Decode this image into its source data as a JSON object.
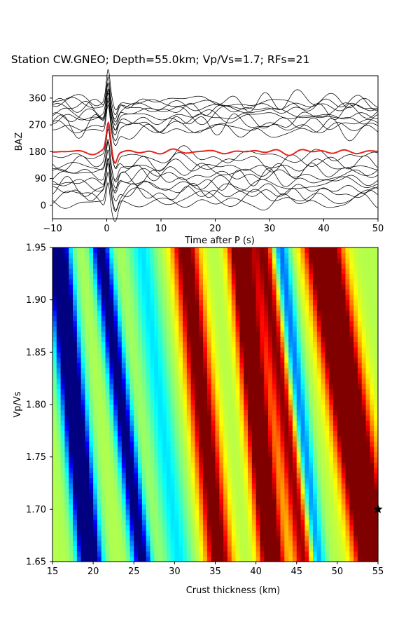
{
  "title": "Station CW.GNEO; Depth=55.0km; Vp/Vs=1.7; RFs=21",
  "chart_data": [
    {
      "type": "line",
      "xlabel": "Time after P (s)",
      "ylabel": "BAZ",
      "xlim": [
        -10,
        50
      ],
      "ylim": [
        -45,
        435
      ],
      "xticks": [
        -10,
        0,
        10,
        20,
        30,
        40,
        50
      ],
      "yticks": [
        0,
        90,
        180,
        270,
        360
      ],
      "trace_count": 21,
      "trace_color": "#000000",
      "trace_baz": [
        10,
        25,
        40,
        55,
        70,
        85,
        100,
        115,
        130,
        145,
        165,
        250,
        262,
        275,
        288,
        300,
        312,
        322,
        332,
        342,
        352
      ],
      "stack": {
        "baseline": 180,
        "color": "#e8251c",
        "peak_time": 0.3,
        "peak_value": 270
      }
    },
    {
      "type": "heatmap",
      "xlabel": "Crust thickness (km)",
      "ylabel": "Vp/Vs",
      "xlim": [
        15,
        55
      ],
      "ylim": [
        1.65,
        1.95
      ],
      "xticks": [
        15,
        20,
        25,
        30,
        35,
        40,
        45,
        50,
        55
      ],
      "yticks": [
        "1.65",
        "1.70",
        "1.75",
        "1.80",
        "1.85",
        "1.90",
        "1.95"
      ],
      "colormap": "jet",
      "best": {
        "H": 55.0,
        "k": 1.7
      },
      "ridges": [
        {
          "H_at_k165": 19.6,
          "slope_km_per_unit": -13.3,
          "amplitude": -0.92,
          "width_km": 1.3
        },
        {
          "H_at_k165": 26.0,
          "slope_km_per_unit": -17.0,
          "amplitude": -0.62,
          "width_km": 1.1
        },
        {
          "H_at_k165": 35.5,
          "slope_km_per_unit": -14.0,
          "amplitude": 0.55,
          "width_km": 1.5
        },
        {
          "H_at_k165": 42.0,
          "slope_km_per_unit": -13.0,
          "amplitude": 0.75,
          "width_km": 1.4
        },
        {
          "H_at_k165": 46.0,
          "slope_km_per_unit": -17.0,
          "amplitude": 0.45,
          "width_km": 1.3
        },
        {
          "H_at_k165": 54.5,
          "slope_km_per_unit": -21.0,
          "amplitude": 0.9,
          "width_km": 2.0
        },
        {
          "H_at_k165": 47.5,
          "slope_km_per_unit": -15.0,
          "amplitude": -0.35,
          "width_km": 1.0
        },
        {
          "H_at_k165": 30.5,
          "slope_km_per_unit": -15.0,
          "amplitude": -0.2,
          "width_km": 1.5
        }
      ],
      "star_color": "#000000"
    }
  ]
}
